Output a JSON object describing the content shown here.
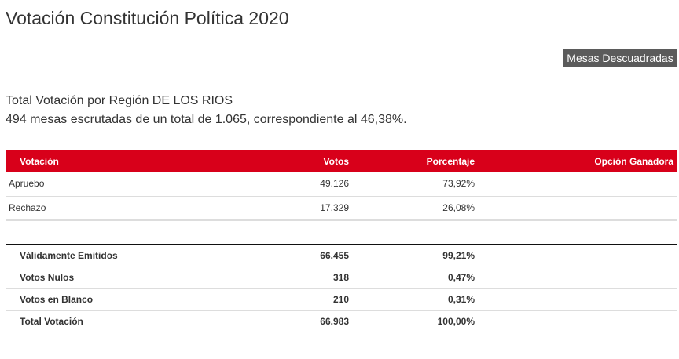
{
  "page": {
    "title": "Votación Constitución Política 2020"
  },
  "actions": {
    "mesas_descuadradas": "Mesas Descuadradas"
  },
  "summary": {
    "region_line": "Total Votación por Región DE LOS RIOS",
    "mesas_line": "494 mesas escrutadas de un total de 1.065, correspondiente al 46,38%."
  },
  "table": {
    "headers": {
      "votacion": "Votación",
      "votos": "Votos",
      "porcentaje": "Porcentaje",
      "opcion_ganadora": "Opción Ganadora"
    },
    "options": [
      {
        "label": "Apruebo",
        "votos": "49.126",
        "porcentaje": "73,92%",
        "ganadora": ""
      },
      {
        "label": "Rechazo",
        "votos": "17.329",
        "porcentaje": "26,08%",
        "ganadora": ""
      }
    ],
    "totals": [
      {
        "label": "Válidamente Emitidos",
        "votos": "66.455",
        "porcentaje": "99,21%"
      },
      {
        "label": "Votos Nulos",
        "votos": "318",
        "porcentaje": "0,47%"
      },
      {
        "label": "Votos en Blanco",
        "votos": "210",
        "porcentaje": "0,31%"
      },
      {
        "label": "Total Votación",
        "votos": "66.983",
        "porcentaje": "100,00%"
      }
    ]
  },
  "colors": {
    "header_red": "#d8001a",
    "button_gray": "#5b5b5b",
    "text": "#333333"
  }
}
